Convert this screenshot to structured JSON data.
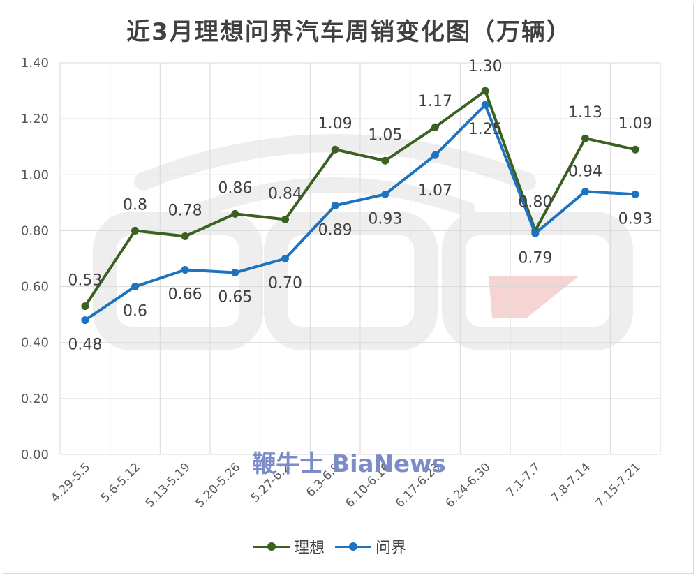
{
  "chart_data": {
    "type": "line",
    "title": "近3月理想问界汽车周销变化图（万辆）",
    "categories": [
      "4.29-5.5",
      "5.6-5.12",
      "5.13-5.19",
      "5.20-5.26",
      "5.27-6.2",
      "6.3-6.9",
      "6.10-6.16",
      "6.17-6.23",
      "6.24-6.30",
      "7.1-7.7",
      "7.8-7.14",
      "7.15-7.21"
    ],
    "ylim": [
      0,
      1.4
    ],
    "yticks": [
      "0.00",
      "0.20",
      "0.40",
      "0.60",
      "0.80",
      "1.00",
      "1.20",
      "1.40"
    ],
    "grid": true,
    "legend_position": "bottom",
    "series": [
      {
        "name": "理想",
        "color": "#3b6122",
        "values": [
          0.53,
          0.8,
          0.78,
          0.86,
          0.84,
          1.09,
          1.05,
          1.17,
          1.3,
          0.8,
          1.13,
          1.09
        ],
        "labels": [
          "0.53",
          "0.8",
          "0.78",
          "0.86",
          "0.84",
          "1.09",
          "1.05",
          "1.17",
          "1.30",
          "0.80",
          "1.13",
          "1.09"
        ]
      },
      {
        "name": "问界",
        "color": "#1e73be",
        "values": [
          0.48,
          0.6,
          0.66,
          0.65,
          0.7,
          0.89,
          0.93,
          1.07,
          1.25,
          0.79,
          0.94,
          0.93
        ],
        "labels": [
          "0.48",
          "0.6",
          "0.66",
          "0.65",
          "0.70",
          "0.89",
          "0.93",
          "1.07",
          "1.25",
          "0.79",
          "0.94",
          "0.93"
        ]
      }
    ]
  },
  "watermark": {
    "brand_text": "鞭牛士 BiaNews",
    "logo_color": "#eeeeee",
    "logo_accent": "#f6d4d4"
  }
}
